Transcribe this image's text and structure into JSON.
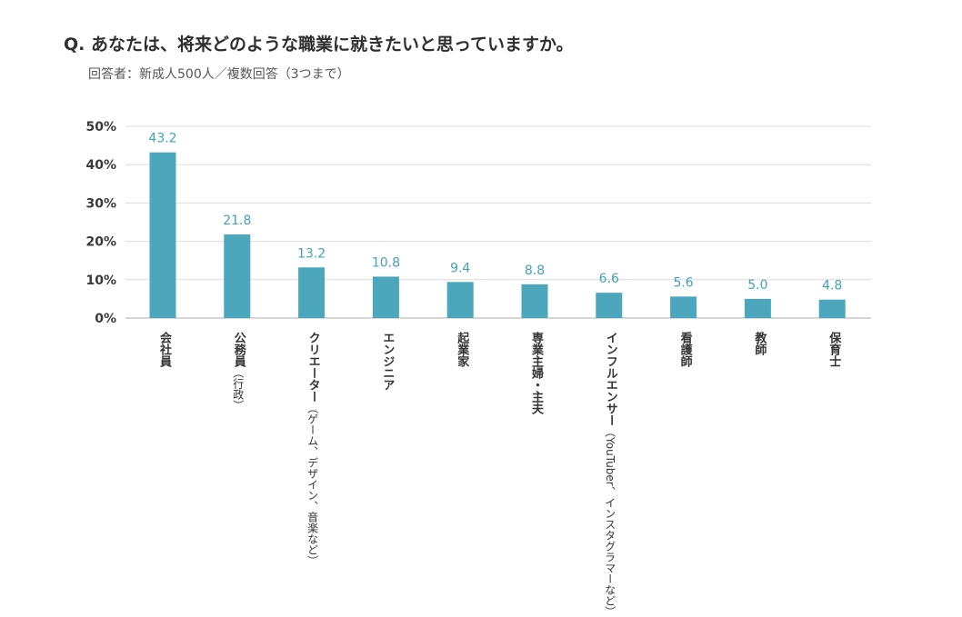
{
  "title": "Q. あなたは、将来どのような職業に就きたいと思っていますか。",
  "subtitle": "回答者：新成人500人／複数回答（3つまで）",
  "colors": {
    "bar": "#4ca6bc",
    "label": "#3fa3ba",
    "grid": "#dcdcdc"
  },
  "chart_data": {
    "type": "bar",
    "title": "Q. あなたは、将来どのような職業に就きたいと思っていますか。",
    "xlabel": "",
    "ylabel": "",
    "ylim": [
      0,
      50
    ],
    "yticks": [
      "0%",
      "10%",
      "20%",
      "30%",
      "40%",
      "50%"
    ],
    "grid": true,
    "categories": [
      {
        "main": "会社員",
        "sub": ""
      },
      {
        "main": "公務員",
        "sub": "（行政）"
      },
      {
        "main": "クリエーター",
        "sub": "（ゲーム、デザイン、音楽など）"
      },
      {
        "main": "エンジニア",
        "sub": ""
      },
      {
        "main": "起業家",
        "sub": ""
      },
      {
        "main": "専業主婦・主夫",
        "sub": ""
      },
      {
        "main": "インフルエンサー",
        "sub": "（YouTuber、インスタグラマーなど）"
      },
      {
        "main": "看護師",
        "sub": ""
      },
      {
        "main": "教師",
        "sub": ""
      },
      {
        "main": "保育士",
        "sub": ""
      }
    ],
    "values": [
      43.2,
      21.8,
      13.2,
      10.8,
      9.4,
      8.8,
      6.6,
      5.6,
      5.0,
      4.8
    ],
    "value_labels": [
      "43.2",
      "21.8",
      "13.2",
      "10.8",
      "9.4",
      "8.8",
      "6.6",
      "5.6",
      "5.0",
      "4.8"
    ]
  }
}
